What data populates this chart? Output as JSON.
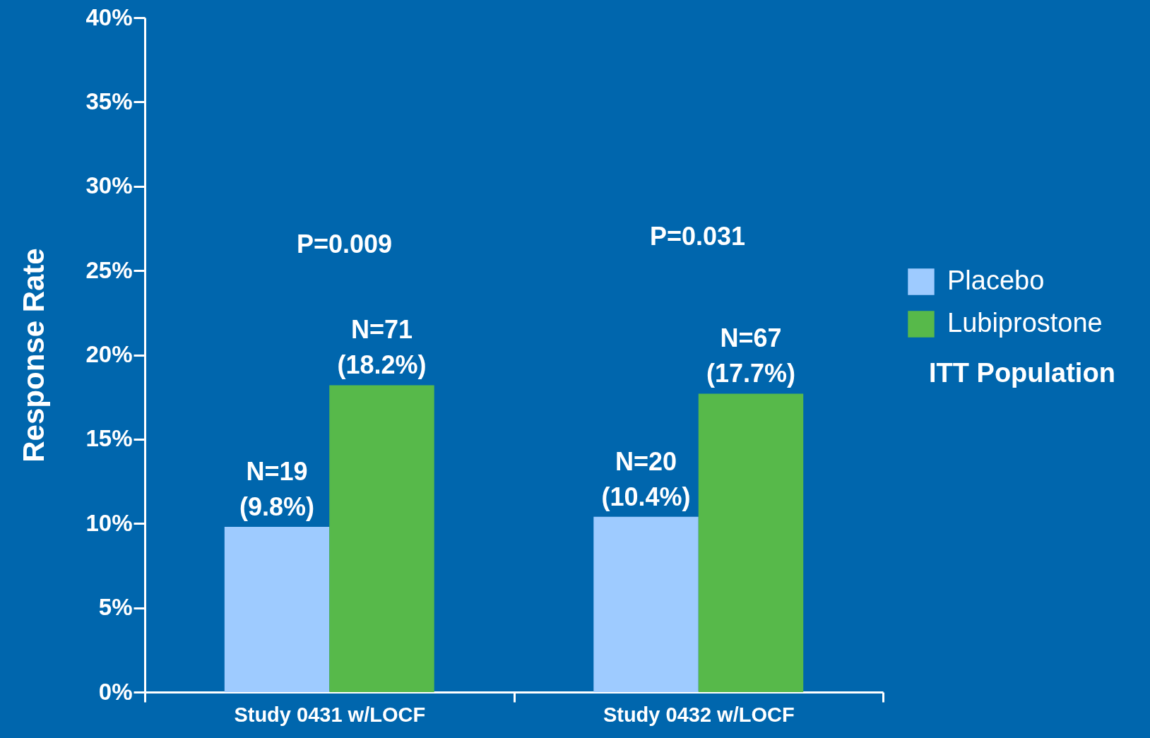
{
  "chart_data": {
    "type": "bar",
    "ylabel": "Response Rate",
    "categories": [
      "Study 0431 w/LOCF",
      "Study 0432 w/LOCF"
    ],
    "series": [
      {
        "name": "Placebo",
        "color": "#9ecbff",
        "values": [
          9.8,
          10.4
        ],
        "value_labels": [
          "N=19\n(9.8%)",
          "N=20\n(10.4%)"
        ]
      },
      {
        "name": "Lubiprostone",
        "color": "#57b94a",
        "values": [
          18.2,
          17.7
        ],
        "value_labels": [
          "N=71\n(18.2%)",
          "N=67\n(17.7%)"
        ]
      }
    ],
    "ylim": [
      0,
      40
    ],
    "yticks": [
      {
        "value": 0,
        "label": "0%"
      },
      {
        "value": 5,
        "label": "5%"
      },
      {
        "value": 10,
        "label": "10%"
      },
      {
        "value": 15,
        "label": "15%"
      },
      {
        "value": 20,
        "label": "20%"
      },
      {
        "value": 25,
        "label": "25%"
      },
      {
        "value": 30,
        "label": "30%"
      },
      {
        "value": 35,
        "label": "35%"
      },
      {
        "value": 40,
        "label": "40%"
      }
    ],
    "annotations": [
      "P=0.009",
      "P=0.031",
      "ITT Population"
    ],
    "legend": "right",
    "grid": false
  }
}
